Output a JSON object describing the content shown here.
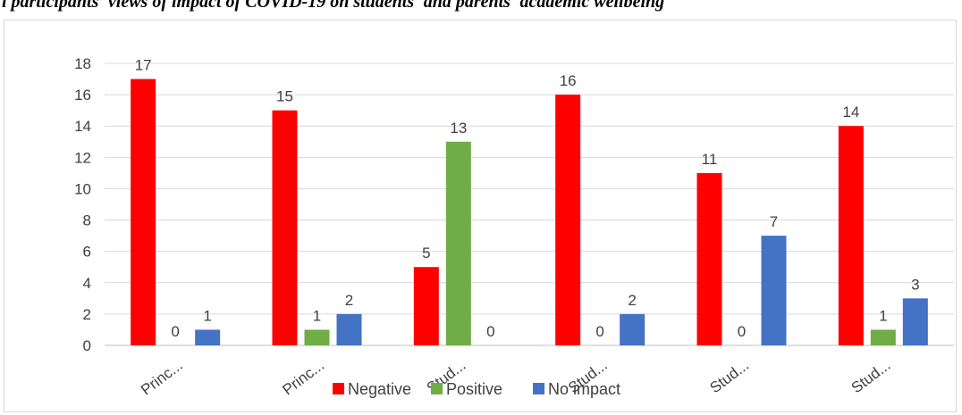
{
  "caption": {
    "text": "i participants' views of impact of COVID-19 on students' and parents' academic wellbeing"
  },
  "chart_data": {
    "type": "bar",
    "categories": [
      "Princ...",
      "Princ...",
      "Stud...",
      "Stud...",
      "Stud...",
      "Stud..."
    ],
    "series": [
      {
        "name": "Negative",
        "color": "#ff0000",
        "values": [
          17,
          15,
          5,
          16,
          11,
          14
        ]
      },
      {
        "name": "Positive",
        "color": "#70ad47",
        "values": [
          0,
          1,
          13,
          0,
          0,
          1
        ]
      },
      {
        "name": "No impact",
        "color": "#4472c4",
        "values": [
          1,
          2,
          0,
          2,
          7,
          3
        ]
      }
    ],
    "ylim": [
      0,
      18
    ],
    "yticks": [
      0,
      2,
      4,
      6,
      8,
      10,
      12,
      14,
      16,
      18
    ],
    "grid": true,
    "legend": "bottom"
  }
}
